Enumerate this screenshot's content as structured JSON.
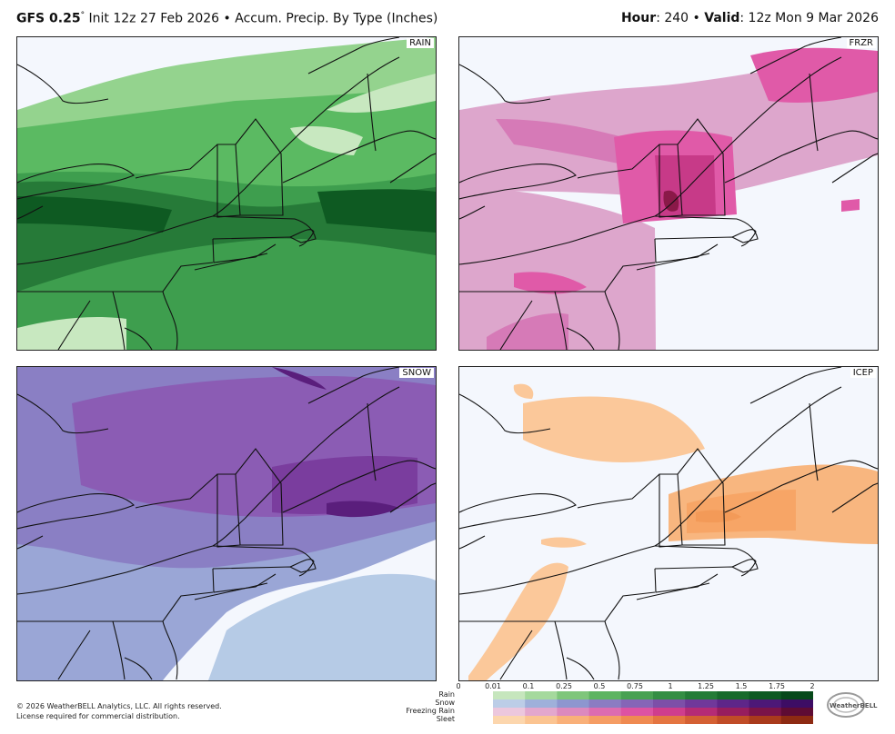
{
  "header": {
    "model": "GFS 0.25",
    "degree": "°",
    "init": " Init 12z 27 Feb 2026",
    "sep1": " • ",
    "product": "Accum. Precip. By Type (Inches)",
    "hour_label": "Hour",
    "hour_value": ": 240",
    "sep2": " • ",
    "valid_label": "Valid",
    "valid_value": ": 12z Mon 9 Mar 2026"
  },
  "panels": [
    {
      "id": "rain",
      "label": "RAIN",
      "colors": [
        "#c8e8c0",
        "#94d38e",
        "#5bba62",
        "#3e9e4e",
        "#267a38",
        "#0e5a22"
      ]
    },
    {
      "id": "frzr",
      "label": "FRZR",
      "colors": [
        "#ecc6de",
        "#dda6cc",
        "#d67ab7",
        "#e05aa8",
        "#c73a88",
        "#8a1948"
      ]
    },
    {
      "id": "snow",
      "label": "SNOW",
      "colors": [
        "#b6cbe6",
        "#9aa6d6",
        "#8a7fc4",
        "#8b5cb4",
        "#7a3d9e",
        "#5a1e7c"
      ]
    },
    {
      "id": "icep",
      "label": "ICEP",
      "colors": [
        "#fbc89a",
        "#f8b67f",
        "#f7a566",
        "#f39a58"
      ]
    }
  ],
  "legend": {
    "ticks": [
      "0",
      "0.01",
      "0.1",
      "0.25",
      "0.5",
      "0.75",
      "1",
      "1.25",
      "1.5",
      "1.75",
      "2"
    ],
    "rows": [
      {
        "label": "Rain",
        "colors": [
          "#c6e6bd",
          "#a5d99d",
          "#7fc67b",
          "#5db461",
          "#48a152",
          "#348e44",
          "#247c37",
          "#176a2b",
          "#0d5a22",
          "#06491a"
        ]
      },
      {
        "label": "Snow",
        "colors": [
          "#bccde7",
          "#9fb0da",
          "#8d96cf",
          "#8a7cc2",
          "#8665b7",
          "#7d4fa8",
          "#70389a",
          "#5e2689",
          "#4d1877",
          "#3d0d64"
        ]
      },
      {
        "label": "Freezing Rain",
        "colors": [
          "#ecc7dd",
          "#e3a7cd",
          "#dc89be",
          "#dc6cb0",
          "#dd52a2",
          "#cf3d8d",
          "#b52b75",
          "#971d5e",
          "#7a1348",
          "#5e0b34"
        ]
      },
      {
        "label": "Sleet",
        "colors": [
          "#fcd6ad",
          "#fbc491",
          "#f9b079",
          "#f59d64",
          "#ef8a51",
          "#e47541",
          "#d46033",
          "#c04c27",
          "#a93a1c",
          "#8d2a12"
        ]
      }
    ]
  },
  "footer": {
    "copyright": "© 2026 WeatherBELL Analytics, LLC. All rights reserved.",
    "license": "License required for commercial distribution."
  },
  "logo_text": "WeatherBELL"
}
